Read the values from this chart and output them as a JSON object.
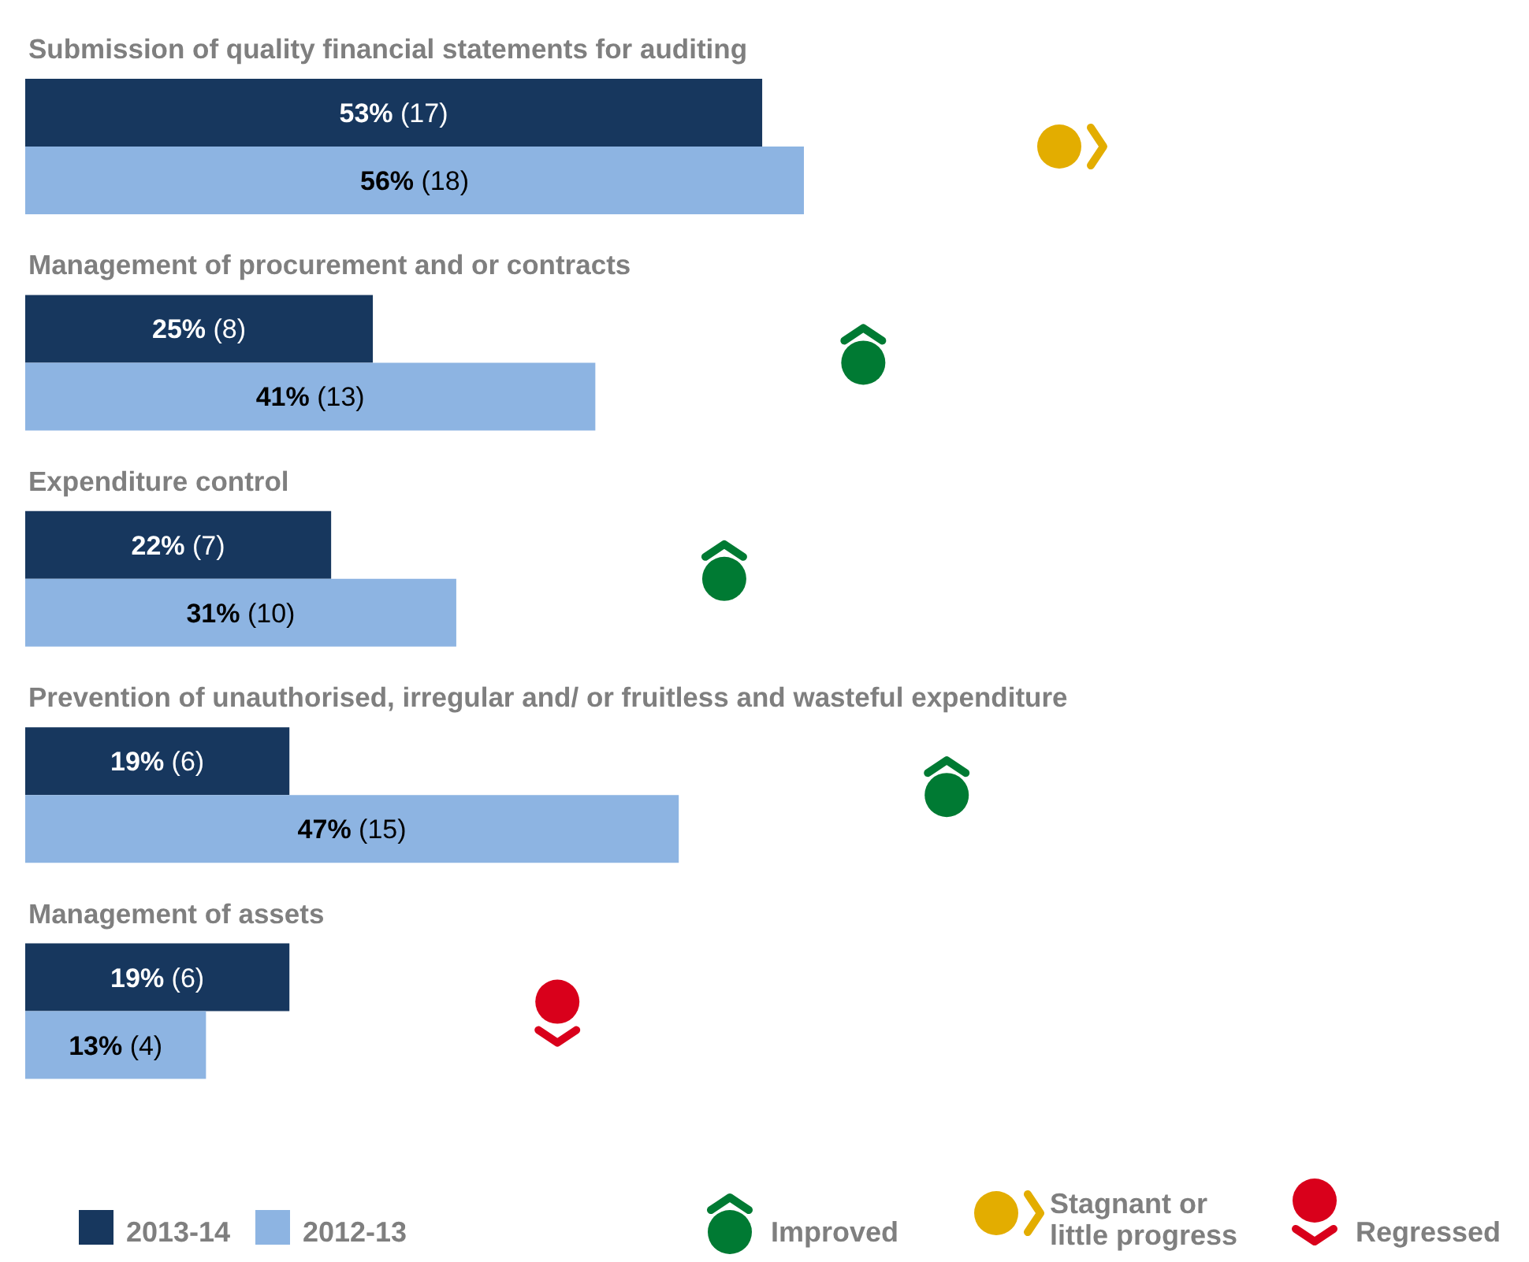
{
  "chart_data": {
    "type": "bar",
    "orientation": "horizontal",
    "categories": [
      "Submission of quality financial statements for auditing",
      "Management of procurement and or contracts",
      "Expenditure control",
      "Prevention of unauthorised, irregular and/ or fruitless and wasteful expenditure",
      "Management of assets"
    ],
    "series": [
      {
        "name": "2013-14",
        "color": "#17375e",
        "values": [
          53,
          25,
          22,
          19,
          19
        ],
        "value_labels": [
          "53% (17)",
          "25% (8)",
          "22% (7)",
          "19% (6)",
          "19% (6)"
        ]
      },
      {
        "name": "2012-13",
        "color": "#8db4e2",
        "values": [
          56,
          41,
          31,
          47,
          13
        ],
        "value_labels": [
          "56% (18)",
          "41% (13)",
          "31% (10)",
          "47% (15)",
          "13% (4)"
        ]
      }
    ],
    "annotations": [
      "Improved",
      "Stagnant or little progress",
      "Regressed"
    ],
    "legend": "bottom left",
    "grid": false
  }
}
